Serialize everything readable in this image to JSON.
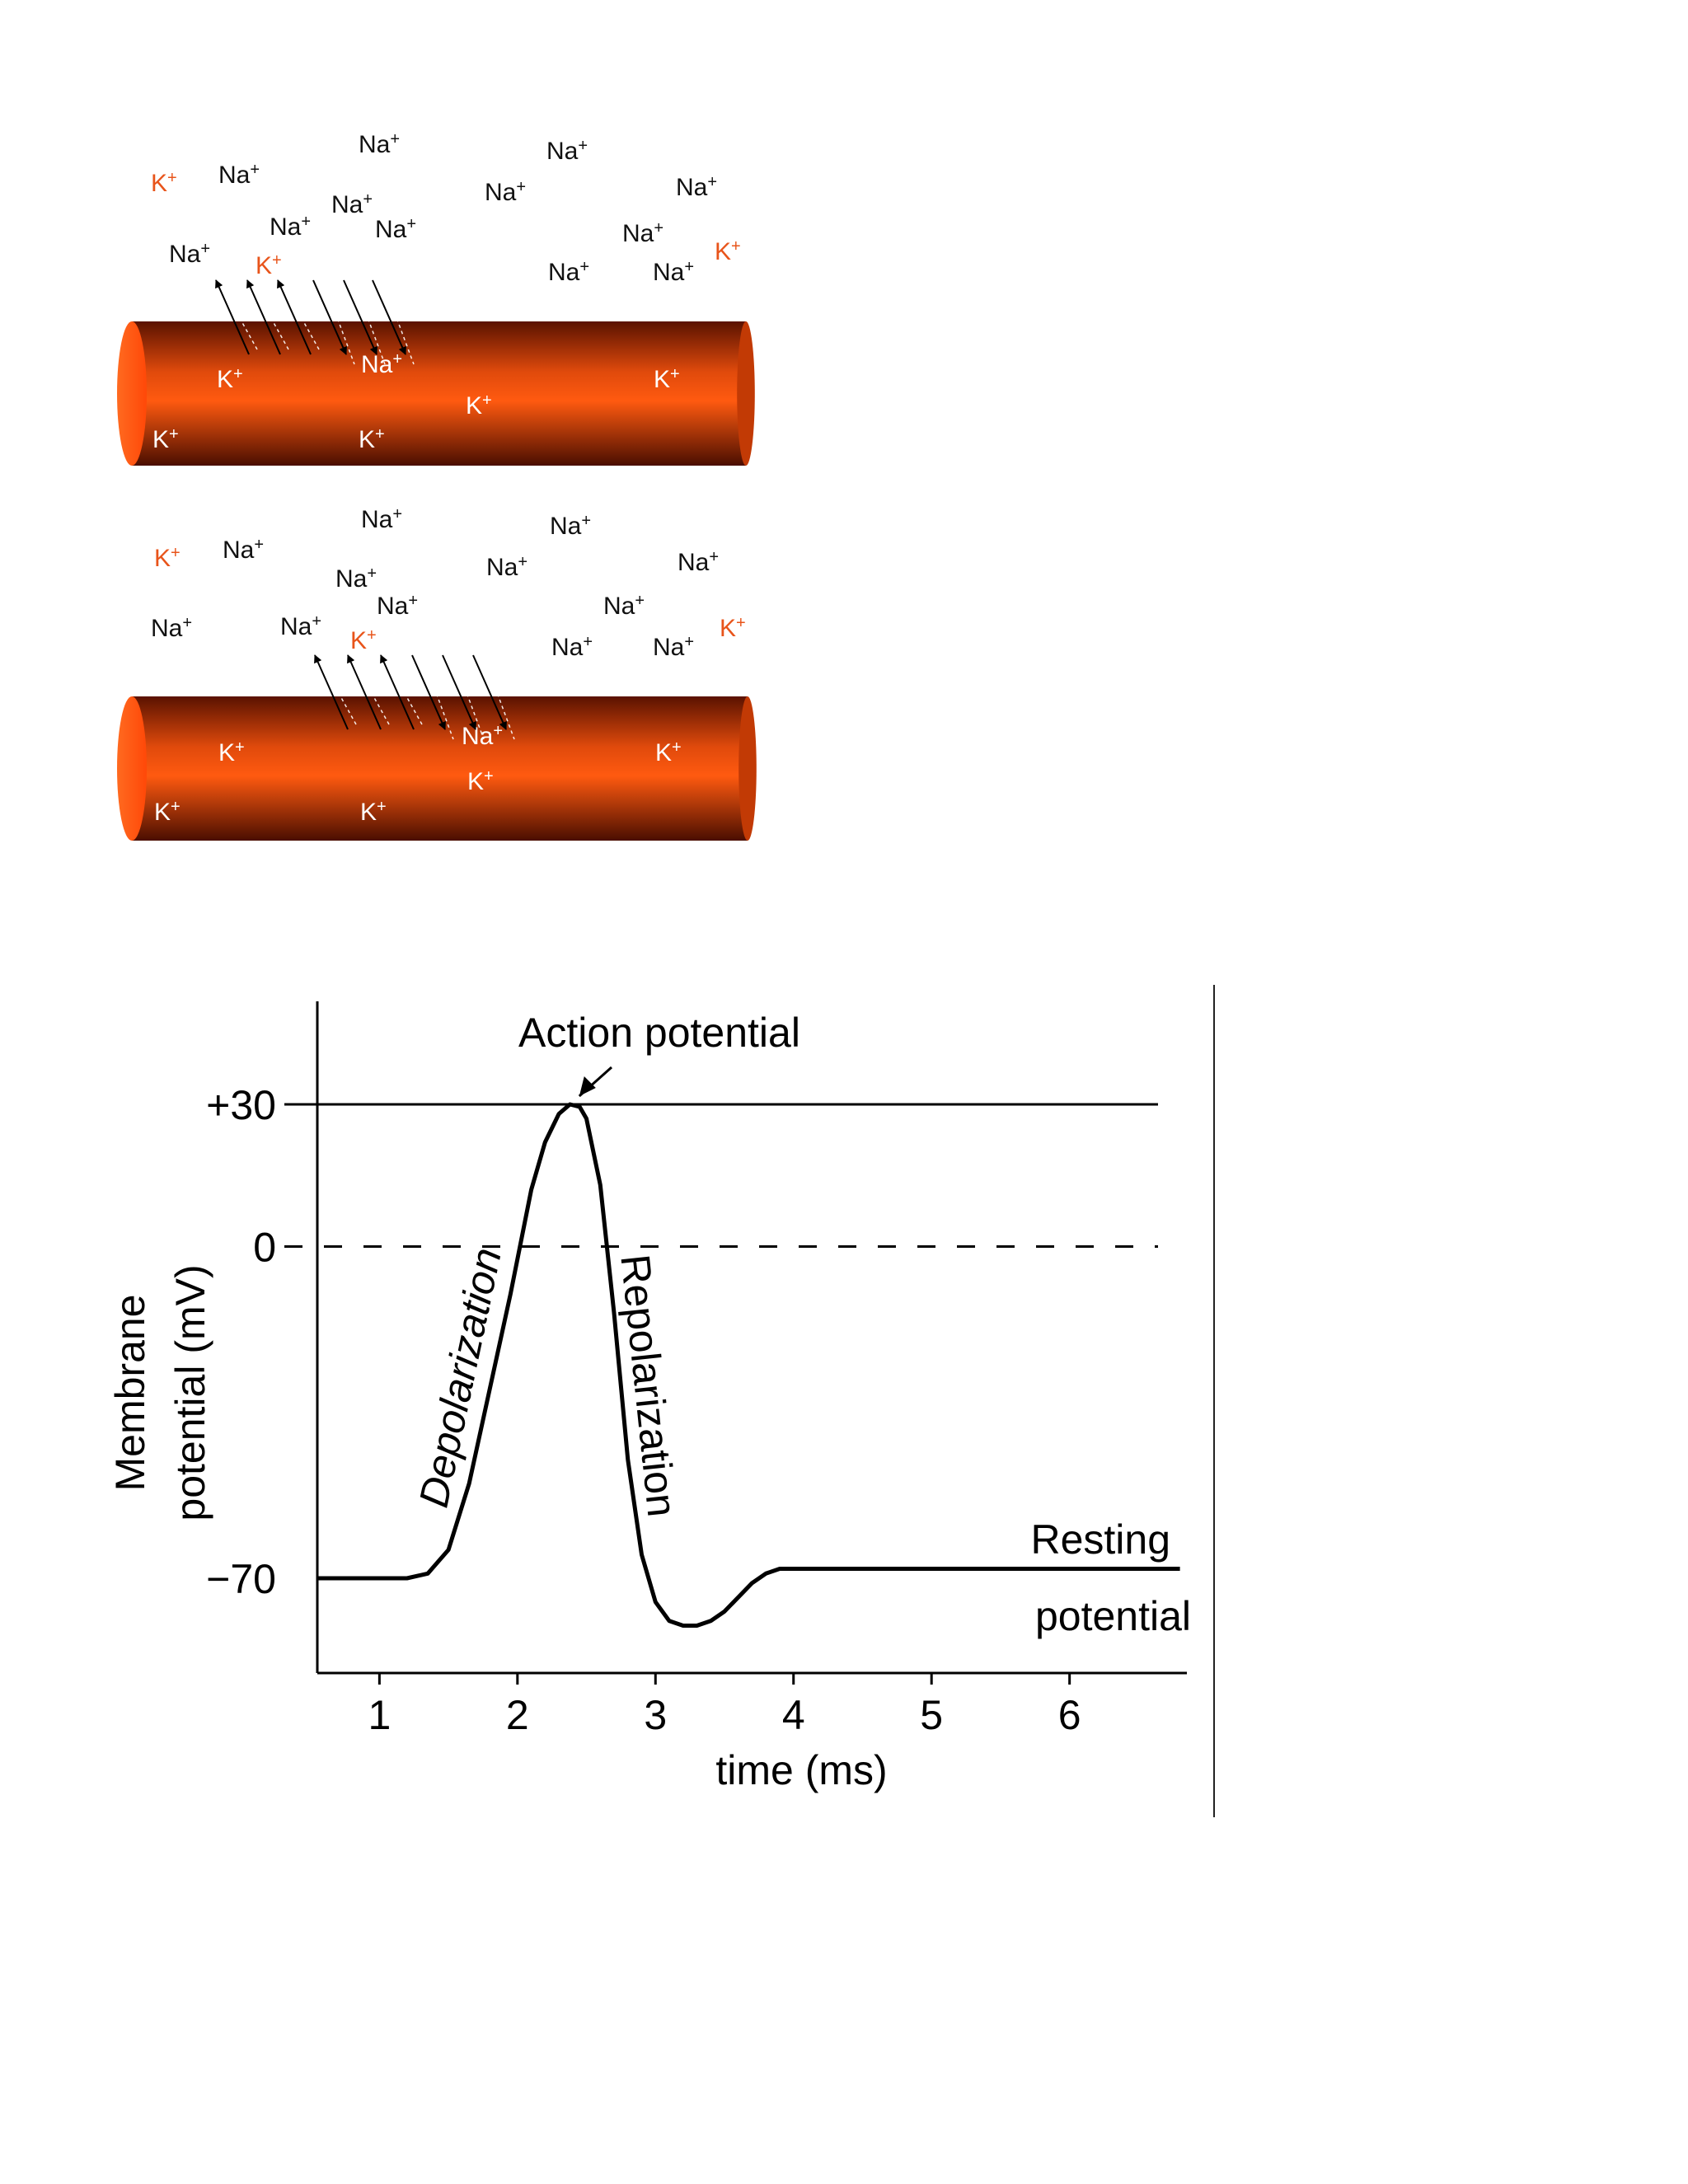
{
  "colors": {
    "axon_dark": "#5a1200",
    "axon_mid": "#c23a05",
    "axon_light": "#ff5a10",
    "ion_k_outside": "#e8541a",
    "ion_k_inside": "#ffffff",
    "ion_na_outside": "#111111",
    "ion_na_inside": "#ffffff"
  },
  "axon_panels": [
    {
      "ions_outside": [
        {
          "label": "Na",
          "sign": "+",
          "type": "Na"
        },
        {
          "label": "Na",
          "sign": "+",
          "type": "Na"
        },
        {
          "label": "K",
          "sign": "+",
          "type": "K"
        },
        {
          "label": "Na",
          "sign": "+",
          "type": "Na"
        },
        {
          "label": "Na",
          "sign": "+",
          "type": "Na"
        },
        {
          "label": "Na",
          "sign": "+",
          "type": "Na"
        },
        {
          "label": "Na",
          "sign": "+",
          "type": "Na"
        },
        {
          "label": "Na",
          "sign": "+",
          "type": "Na"
        },
        {
          "label": "Na",
          "sign": "+",
          "type": "Na"
        },
        {
          "label": "Na",
          "sign": "+",
          "type": "Na"
        },
        {
          "label": "K",
          "sign": "+",
          "type": "K"
        },
        {
          "label": "Na",
          "sign": "+",
          "type": "Na"
        },
        {
          "label": "K",
          "sign": "+",
          "type": "K"
        },
        {
          "label": "Na",
          "sign": "+",
          "type": "Na"
        },
        {
          "label": "Na",
          "sign": "+",
          "type": "Na"
        }
      ],
      "ions_inside": [
        {
          "label": "Na",
          "sign": "+",
          "type": "Na"
        },
        {
          "label": "K",
          "sign": "+",
          "type": "K"
        },
        {
          "label": "K",
          "sign": "+",
          "type": "K"
        },
        {
          "label": "K",
          "sign": "+",
          "type": "K"
        },
        {
          "label": "K",
          "sign": "+",
          "type": "K"
        },
        {
          "label": "K",
          "sign": "+",
          "type": "K"
        }
      ]
    },
    {
      "ions_outside": [
        {
          "label": "Na",
          "sign": "+",
          "type": "Na"
        },
        {
          "label": "Na",
          "sign": "+",
          "type": "Na"
        },
        {
          "label": "K",
          "sign": "+",
          "type": "K"
        },
        {
          "label": "Na",
          "sign": "+",
          "type": "Na"
        },
        {
          "label": "Na",
          "sign": "+",
          "type": "Na"
        },
        {
          "label": "Na",
          "sign": "+",
          "type": "Na"
        },
        {
          "label": "Na",
          "sign": "+",
          "type": "Na"
        },
        {
          "label": "Na",
          "sign": "+",
          "type": "Na"
        },
        {
          "label": "Na",
          "sign": "+",
          "type": "Na"
        },
        {
          "label": "Na",
          "sign": "+",
          "type": "Na"
        },
        {
          "label": "Na",
          "sign": "+",
          "type": "Na"
        },
        {
          "label": "K",
          "sign": "+",
          "type": "K"
        },
        {
          "label": "Na",
          "sign": "+",
          "type": "Na"
        },
        {
          "label": "Na",
          "sign": "+",
          "type": "Na"
        },
        {
          "label": "K",
          "sign": "+",
          "type": "K"
        }
      ],
      "ions_inside": [
        {
          "label": "Na",
          "sign": "+",
          "type": "Na"
        },
        {
          "label": "K",
          "sign": "+",
          "type": "K"
        },
        {
          "label": "K",
          "sign": "+",
          "type": "K"
        },
        {
          "label": "K",
          "sign": "+",
          "type": "K"
        },
        {
          "label": "K",
          "sign": "+",
          "type": "K"
        },
        {
          "label": "K",
          "sign": "+",
          "type": "K"
        }
      ]
    }
  ],
  "chart_data": {
    "type": "line",
    "title": "",
    "xlabel": "time (ms)",
    "ylabel_line1": "Membrane",
    "ylabel_line2": "potential (mV)",
    "xticks": [
      "1",
      "2",
      "3",
      "4",
      "5",
      "6"
    ],
    "yticks": [
      {
        "value": 30,
        "label": "+30"
      },
      {
        "value": 0,
        "label": "0"
      },
      {
        "value": -70,
        "label": "−70"
      }
    ],
    "xlim": [
      0.55,
      6.85
    ],
    "ylim": [
      -90,
      50
    ],
    "threshold_lines": [
      {
        "value": 30,
        "style": "solid"
      },
      {
        "value": 0,
        "style": "dashed"
      }
    ],
    "annotations": {
      "peak": "Action potential",
      "rising": "Depolarization",
      "falling": "Repolarization",
      "resting_line1": "Resting",
      "resting_line2": "potential"
    },
    "series": [
      {
        "x": [
          0.55,
          1.0,
          1.2,
          1.35,
          1.5,
          1.65,
          1.8,
          1.95,
          2.1,
          2.2,
          2.3,
          2.38,
          2.45,
          2.5,
          2.6,
          2.7,
          2.8,
          2.9,
          3.0,
          3.1,
          3.2,
          3.3,
          3.4,
          3.5,
          3.6,
          3.7,
          3.8,
          3.9,
          4.0,
          4.5,
          5.0,
          5.5,
          6.0,
          6.5,
          6.8
        ],
        "y": [
          -70,
          -70,
          -70,
          -69,
          -64,
          -50,
          -30,
          -10,
          12,
          22,
          28,
          30,
          29.5,
          27,
          13,
          -14,
          -45,
          -65,
          -75,
          -79,
          -80,
          -80,
          -79,
          -77,
          -74,
          -71,
          -69,
          -68,
          -68,
          -68,
          -68,
          -68,
          -68,
          -68,
          -68
        ]
      }
    ]
  }
}
